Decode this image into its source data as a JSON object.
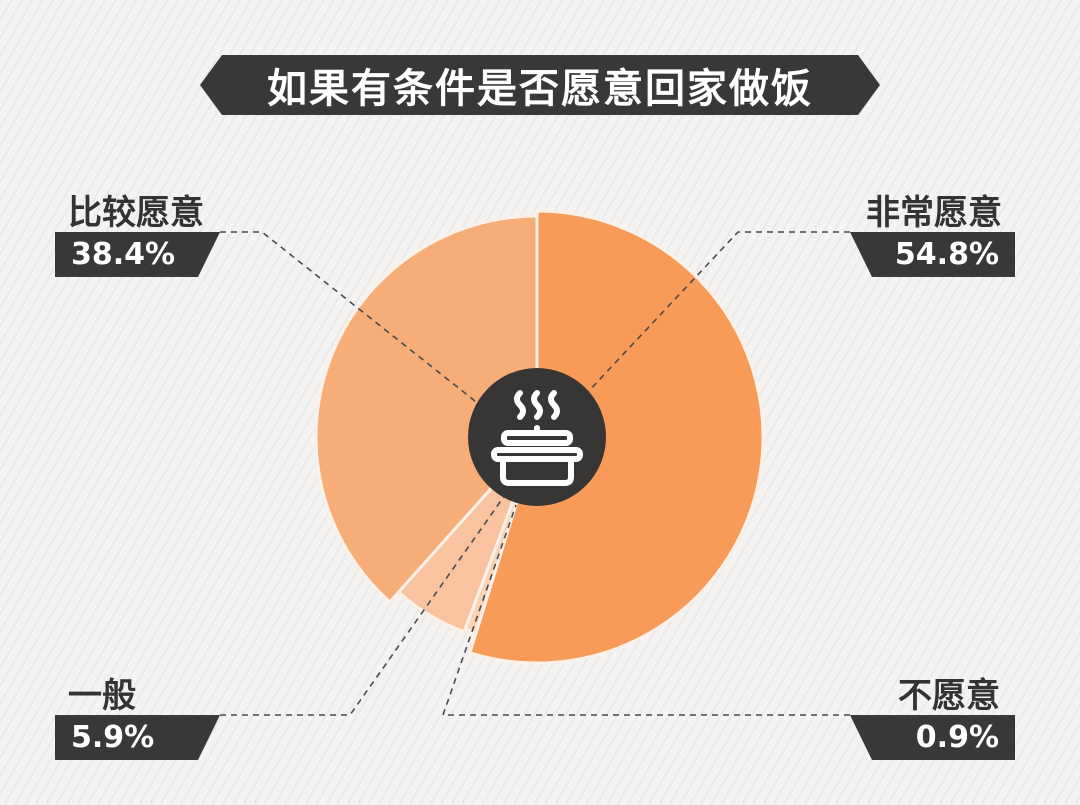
{
  "chart_data": {
    "type": "pie",
    "title": "如果有条件是否愿意回家做饭",
    "slices": [
      {
        "label": "非常愿意",
        "value": 54.8,
        "display": "54.8%",
        "color": "#F89A58"
      },
      {
        "label": "不愿意",
        "value": 0.9,
        "display": "0.9%",
        "color": "#FAD3B5"
      },
      {
        "label": "一般",
        "value": 5.9,
        "display": "5.9%",
        "color": "#F8C39E"
      },
      {
        "label": "比较愿意",
        "value": 38.4,
        "display": "38.4%",
        "color": "#F7AD78"
      }
    ],
    "center_icon": "cooking-pot-icon"
  }
}
